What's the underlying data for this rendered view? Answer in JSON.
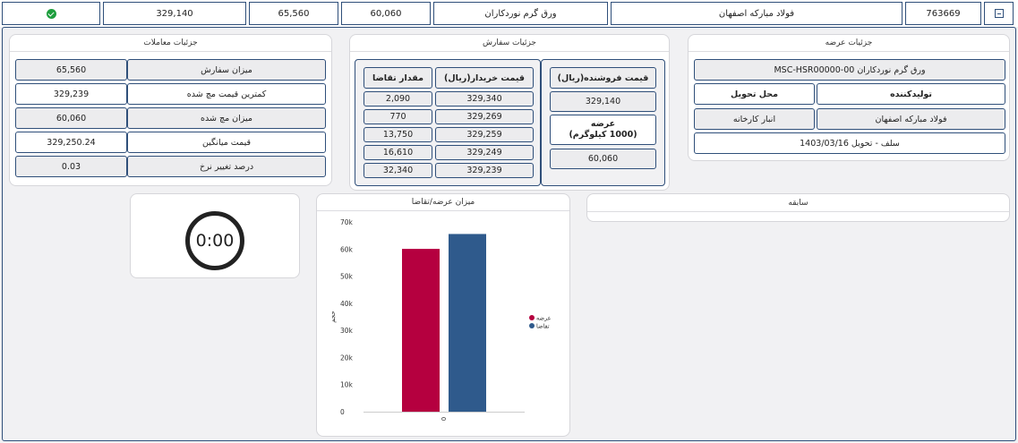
{
  "top_row": {
    "status": "check-circle-icon",
    "last_price": "329,140",
    "order_qty": "65,560",
    "offer_qty": "60,060",
    "product": "ورق گرم نوردکاران",
    "producer": "فولاد مبارکه اصفهان",
    "code": "763669"
  },
  "offer": {
    "title": "جزئیات عرضه",
    "product_code": "ورق گرم نوردکاران 00-MSC-HSR00000",
    "producer_label": "تولیدکننده",
    "delivery_label": "محل تحویل",
    "producer_value": "فولاد مبارکه اصفهان",
    "delivery_value": "انبار کارخانه",
    "delivery_terms": "سلف - تحویل 1403/03/16"
  },
  "order": {
    "title": "جزئیات سفارش",
    "seller_price_header": "قیمت فروشنده(ریال)",
    "seller_price": "329,140",
    "supply_header_line1": "عرضه",
    "supply_header_line2": "(1000 کیلوگرم)",
    "supply_value": "60,060",
    "buyer_price_header": "قیمت خریدار(ریال)",
    "demand_qty_header": "مقدار تقاضا",
    "bids": [
      {
        "price": "329,340",
        "qty": "2,090"
      },
      {
        "price": "329,269",
        "qty": "770"
      },
      {
        "price": "329,259",
        "qty": "13,750"
      },
      {
        "price": "329,249",
        "qty": "16,610"
      },
      {
        "price": "329,239",
        "qty": "32,340"
      }
    ]
  },
  "trades": {
    "title": "جزئیات معاملات",
    "rows": [
      {
        "label": "میزان سفارش",
        "value": "65,560"
      },
      {
        "label": "کمترین قیمت مچ شده",
        "value": "329,239"
      },
      {
        "label": "میزان مچ شده",
        "value": "60,060"
      },
      {
        "label": "قیمت میانگین",
        "value": "329,250.24"
      },
      {
        "label": "درصد تغییر نرخ",
        "value": "0.03"
      }
    ]
  },
  "history": {
    "title": "سابقه"
  },
  "timer": {
    "value": "0:00"
  },
  "chart_data": {
    "type": "bar",
    "title": "میزان عرضه/تقاضا",
    "categories": [
      "0"
    ],
    "series": [
      {
        "name": "عرضه",
        "values": [
          60060
        ],
        "color": "#b5003f"
      },
      {
        "name": "تقاضا",
        "values": [
          65560
        ],
        "color": "#2f5a8c"
      }
    ],
    "ylabel": "حجم",
    "ylim": [
      0,
      70000
    ],
    "yticks": [
      "0",
      "10k",
      "20k",
      "30k",
      "40k",
      "50k",
      "60k",
      "70k"
    ],
    "legend": "right"
  }
}
